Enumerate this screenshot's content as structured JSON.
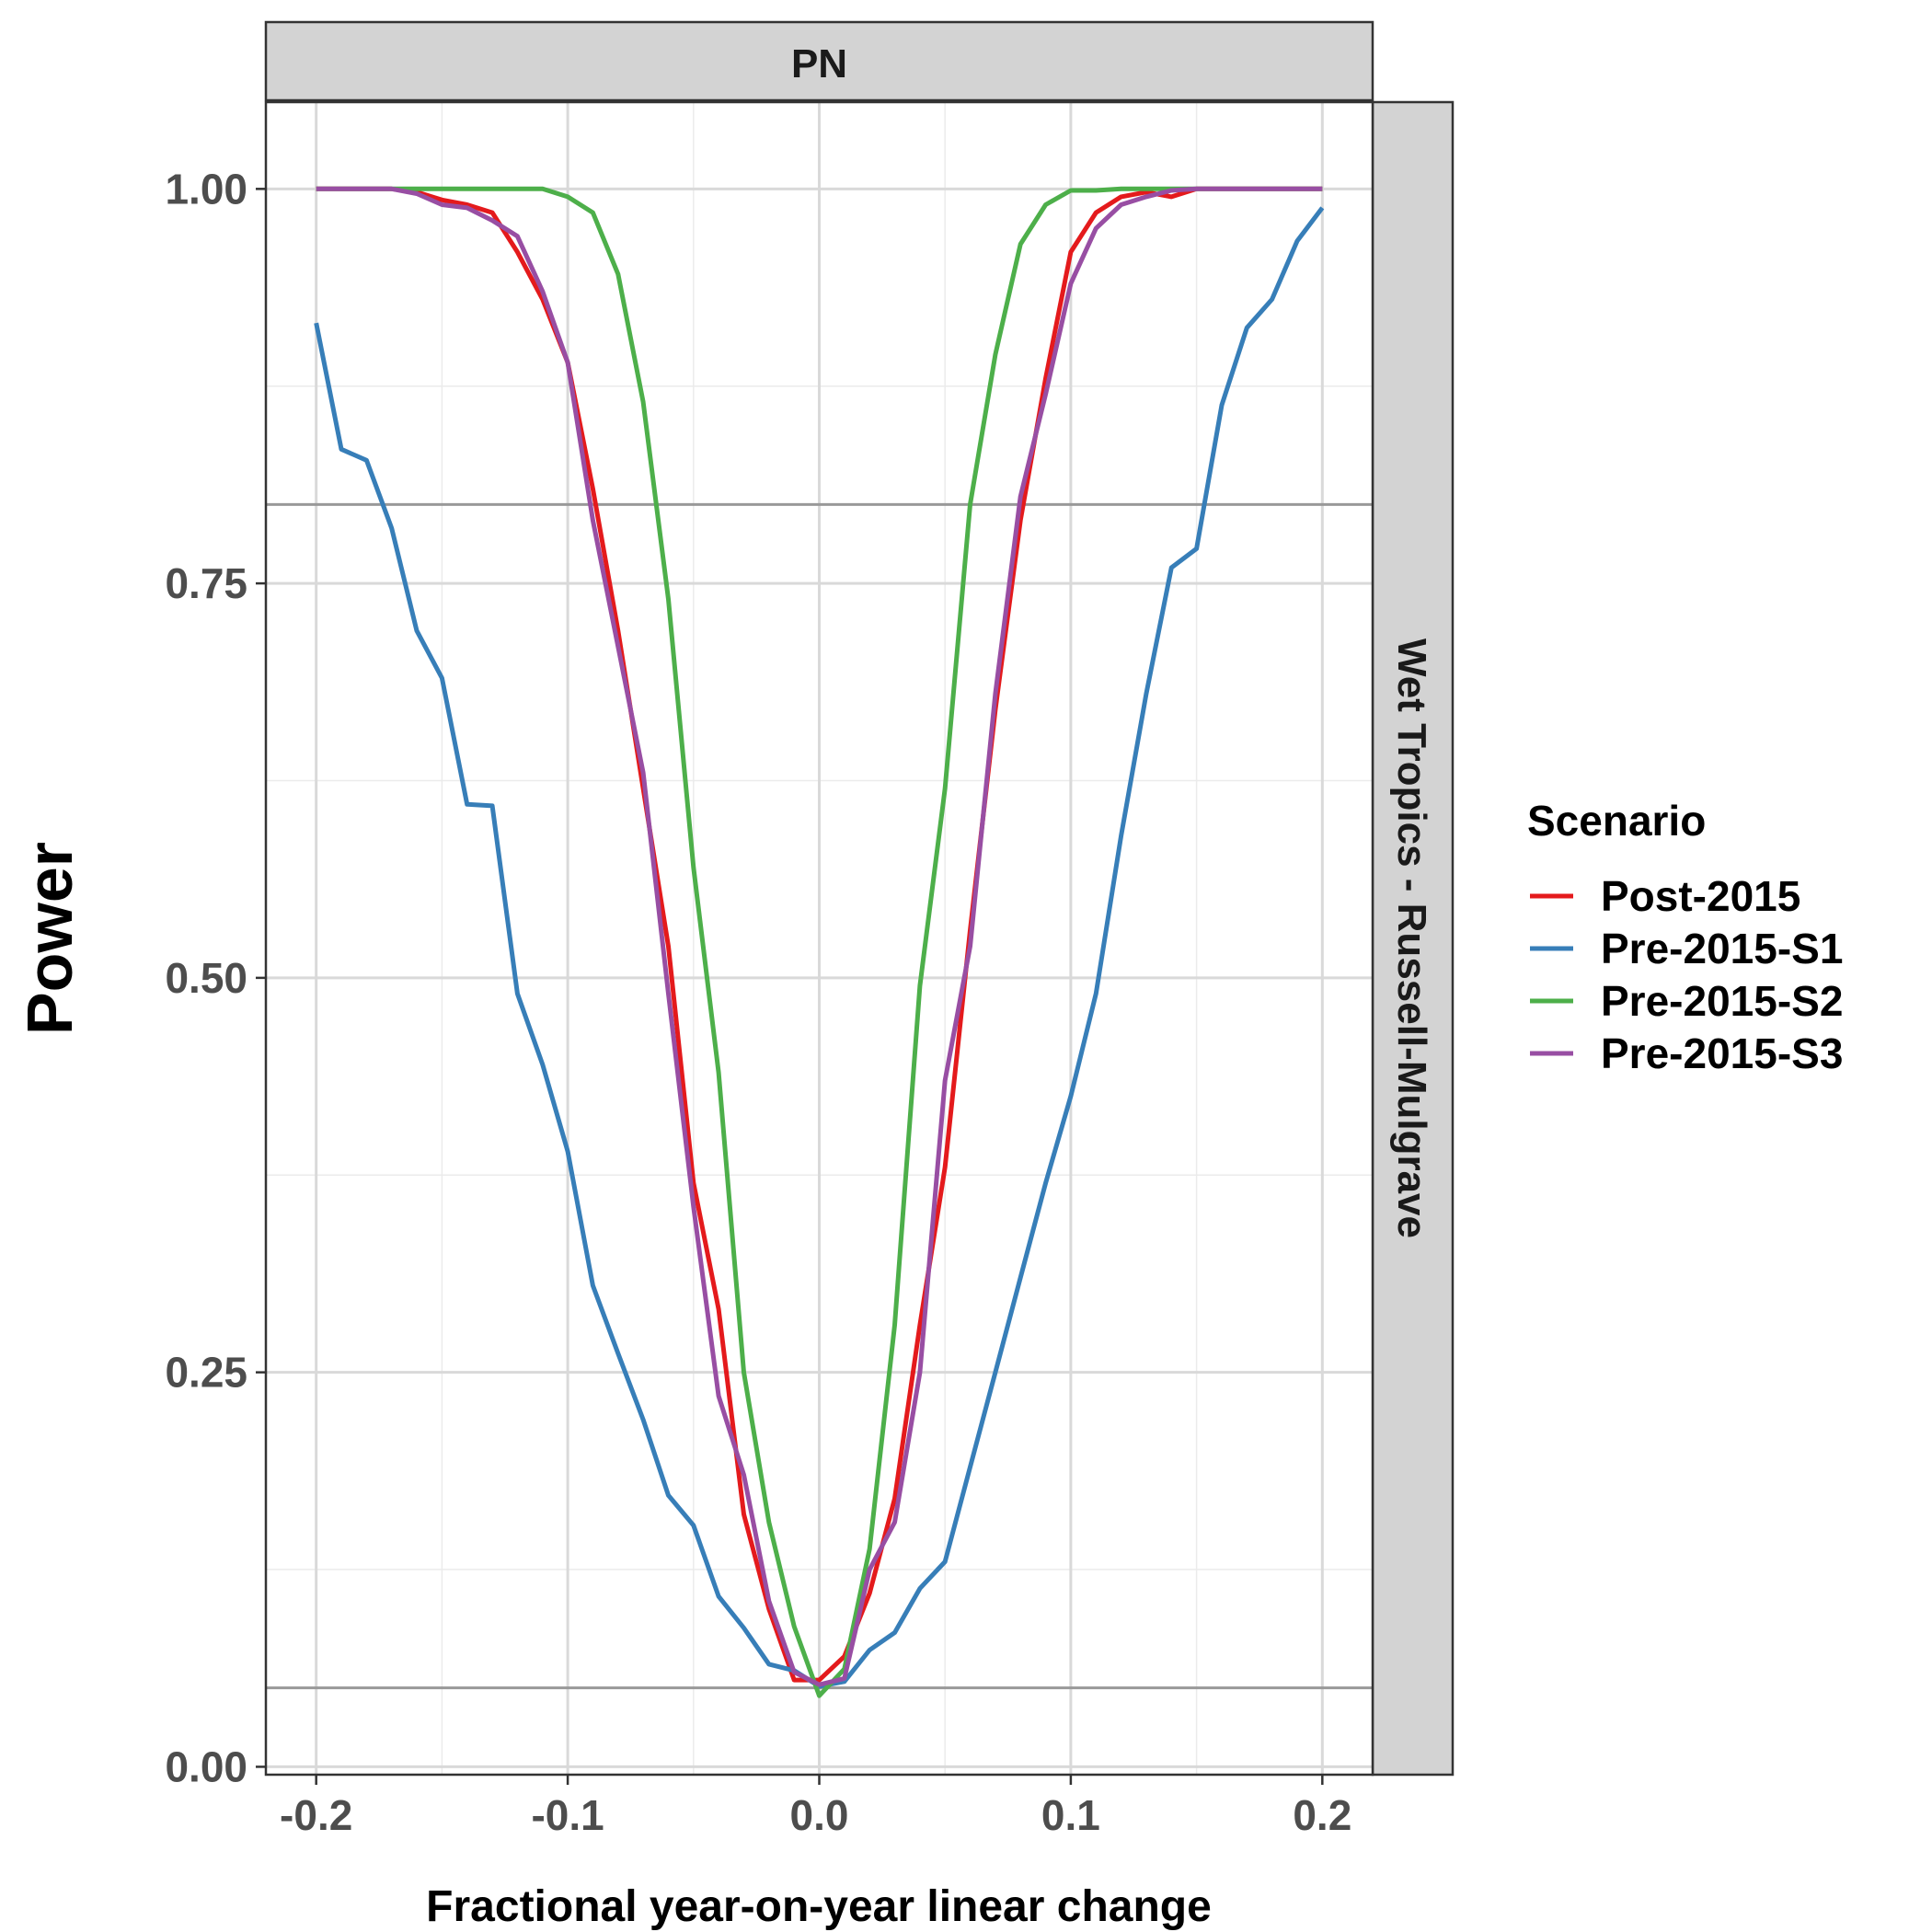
{
  "chart_data": {
    "type": "line",
    "facet_top": "PN",
    "facet_right": "Wet Tropics - Russell-Mulgrave",
    "xlabel": "Fractional year-on-year linear change",
    "ylabel": "Power",
    "xlim": [
      -0.22,
      0.22
    ],
    "ylim": [
      -0.005,
      1.055
    ],
    "x_ticks": [
      -0.2,
      -0.1,
      0.0,
      0.1,
      0.2
    ],
    "x_tick_labels": [
      "-0.2",
      "-0.1",
      "0.0",
      "0.1",
      "0.2"
    ],
    "y_ticks": [
      0,
      0.25,
      0.5,
      0.75,
      1.0
    ],
    "y_tick_labels": [
      "0.00",
      "0.25",
      "0.50",
      "0.75",
      "1.00"
    ],
    "reference_lines": [
      0.8,
      0.05
    ],
    "grid": true,
    "legend": {
      "title": "Scenario",
      "position": "right"
    },
    "x": [
      -0.2,
      -0.19,
      -0.18,
      -0.17,
      -0.16,
      -0.15,
      -0.14,
      -0.13,
      -0.12,
      -0.11,
      -0.1,
      -0.09,
      -0.08,
      -0.07,
      -0.06,
      -0.05,
      -0.04,
      -0.03,
      -0.02,
      -0.01,
      0.0,
      0.01,
      0.02,
      0.03,
      0.04,
      0.05,
      0.06,
      0.07,
      0.08,
      0.09,
      0.1,
      0.11,
      0.12,
      0.13,
      0.14,
      0.15,
      0.16,
      0.17,
      0.18,
      0.19,
      0.2
    ],
    "series": [
      {
        "name": "Post-2015",
        "color": "#E41A1C",
        "values": [
          1.0,
          1.0,
          1.0,
          1.0,
          0.998,
          0.993,
          0.99,
          0.985,
          0.96,
          0.93,
          0.89,
          0.81,
          0.72,
          0.62,
          0.52,
          0.37,
          0.29,
          0.16,
          0.1,
          0.055,
          0.055,
          0.07,
          0.11,
          0.17,
          0.28,
          0.38,
          0.53,
          0.67,
          0.79,
          0.88,
          0.96,
          0.985,
          0.995,
          0.998,
          0.995,
          1.0,
          1.0,
          1.0,
          1.0,
          1.0,
          1.0
        ]
      },
      {
        "name": "Pre-2015-S1",
        "color": "#377EB8",
        "values": [
          0.915,
          0.835,
          0.828,
          0.785,
          0.72,
          0.69,
          0.61,
          0.609,
          0.49,
          0.445,
          0.39,
          0.305,
          0.262,
          0.22,
          0.172,
          0.153,
          0.108,
          0.088,
          0.065,
          0.061,
          0.051,
          0.054,
          0.074,
          0.085,
          0.113,
          0.13,
          0.19,
          0.25,
          0.31,
          0.37,
          0.425,
          0.49,
          0.59,
          0.68,
          0.76,
          0.772,
          0.863,
          0.912,
          0.93,
          0.967,
          0.988
        ]
      },
      {
        "name": "Pre-2015-S2",
        "color": "#4DAF4A",
        "values": [
          1.0,
          1.0,
          1.0,
          1.0,
          1.0,
          1.0,
          1.0,
          1.0,
          1.0,
          1.0,
          0.995,
          0.985,
          0.946,
          0.865,
          0.74,
          0.57,
          0.44,
          0.25,
          0.155,
          0.089,
          0.045,
          0.062,
          0.138,
          0.28,
          0.495,
          0.62,
          0.8,
          0.895,
          0.965,
          0.99,
          0.999,
          0.999,
          1.0,
          1.0,
          1.0,
          1.0,
          1.0,
          1.0,
          1.0,
          1.0,
          1.0
        ]
      },
      {
        "name": "Pre-2015-S3",
        "color": "#984EA3",
        "values": [
          1.0,
          1.0,
          1.0,
          1.0,
          0.997,
          0.99,
          0.988,
          0.98,
          0.97,
          0.935,
          0.89,
          0.79,
          0.71,
          0.63,
          0.49,
          0.355,
          0.235,
          0.185,
          0.105,
          0.06,
          0.052,
          0.056,
          0.125,
          0.155,
          0.25,
          0.435,
          0.52,
          0.68,
          0.805,
          0.87,
          0.94,
          0.975,
          0.99,
          0.995,
          0.999,
          1.0,
          1.0,
          1.0,
          1.0,
          1.0,
          1.0
        ]
      }
    ]
  }
}
